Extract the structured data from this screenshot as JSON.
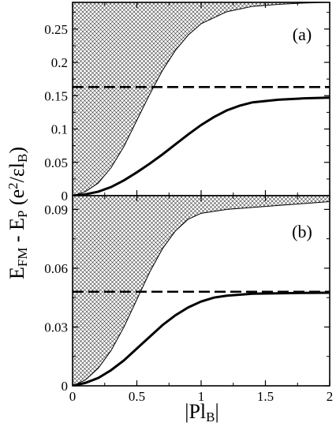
{
  "chart_data": [
    {
      "type": "area",
      "panel_label": "(a)",
      "ylim": [
        0,
        0.29
      ],
      "xlim": [
        0,
        2
      ],
      "yticks": [
        0,
        0.05,
        0.1,
        0.15,
        0.2,
        0.25
      ],
      "ytick_labels": [
        "0",
        "0.05",
        "0.1",
        "0.15",
        "0.2",
        "0.25"
      ],
      "series": [
        {
          "style": "hatched-region-lower-edge",
          "x": [
            0,
            0.1,
            0.2,
            0.3,
            0.4,
            0.5,
            0.6,
            0.7,
            0.8,
            0.9,
            1.0,
            1.2,
            1.4,
            1.6,
            1.8,
            2.0
          ],
          "y": [
            0,
            0.006,
            0.019,
            0.042,
            0.074,
            0.113,
            0.152,
            0.188,
            0.218,
            0.241,
            0.258,
            0.276,
            0.284,
            0.287,
            0.289,
            0.29
          ]
        },
        {
          "style": "dashed",
          "x": [
            0,
            2
          ],
          "y": [
            0.163,
            0.163
          ]
        },
        {
          "style": "solid-thick",
          "x": [
            0,
            0.1,
            0.2,
            0.3,
            0.4,
            0.5,
            0.6,
            0.7,
            0.8,
            0.9,
            1.0,
            1.1,
            1.2,
            1.3,
            1.4,
            1.6,
            1.8,
            2.0
          ],
          "y": [
            0,
            0.002,
            0.006,
            0.013,
            0.023,
            0.035,
            0.048,
            0.062,
            0.077,
            0.092,
            0.106,
            0.118,
            0.128,
            0.135,
            0.14,
            0.144,
            0.146,
            0.147
          ]
        }
      ]
    },
    {
      "type": "area",
      "panel_label": "(b)",
      "ylim": [
        0,
        0.097
      ],
      "xlim": [
        0,
        2
      ],
      "yticks": [
        0,
        0.03,
        0.06,
        0.09
      ],
      "ytick_labels": [
        "0",
        "0.03",
        "0.06",
        "0.09"
      ],
      "series": [
        {
          "style": "hatched-region-lower-edge",
          "x": [
            0,
            0.1,
            0.2,
            0.3,
            0.4,
            0.5,
            0.6,
            0.7,
            0.8,
            0.9,
            1.0,
            1.2,
            1.4,
            1.6,
            1.8,
            2.0
          ],
          "y": [
            0,
            0.003,
            0.009,
            0.018,
            0.03,
            0.044,
            0.058,
            0.07,
            0.079,
            0.085,
            0.088,
            0.09,
            0.091,
            0.092,
            0.093,
            0.094
          ]
        },
        {
          "style": "dashed",
          "x": [
            0,
            2
          ],
          "y": [
            0.048,
            0.048
          ]
        },
        {
          "style": "solid-thick",
          "x": [
            0,
            0.1,
            0.2,
            0.3,
            0.4,
            0.5,
            0.6,
            0.7,
            0.8,
            0.9,
            1.0,
            1.1,
            1.2,
            1.3,
            1.4,
            1.6,
            1.8,
            2.0
          ],
          "y": [
            0,
            0.0015,
            0.004,
            0.008,
            0.013,
            0.019,
            0.025,
            0.031,
            0.036,
            0.04,
            0.043,
            0.045,
            0.046,
            0.0465,
            0.047,
            0.0472,
            0.0474,
            0.0475
          ]
        }
      ]
    }
  ],
  "shared": {
    "xticks": [
      0,
      0.5,
      1,
      1.5,
      2
    ],
    "xtick_labels": [
      "0",
      "0.5",
      "1",
      "1.5",
      "2"
    ],
    "xlabel": "|Pl_B|",
    "ylabel": "E_FM - E_P (e^2/εl_B)"
  }
}
